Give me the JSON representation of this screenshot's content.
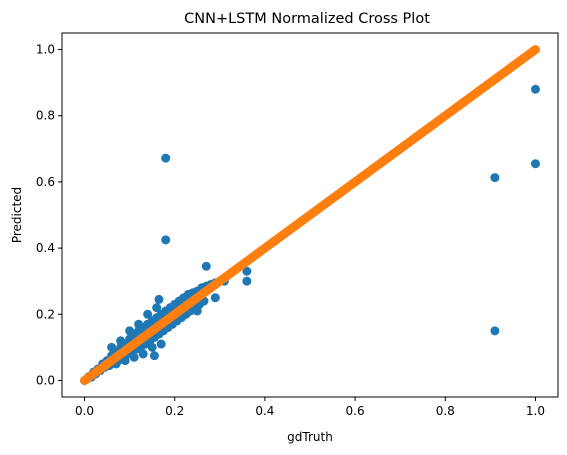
{
  "chart_data": {
    "type": "scatter",
    "title": "CNN+LSTM Normalized Cross Plot",
    "xlabel": "gdTruth",
    "ylabel": "Predicted",
    "xlim": [
      -0.05,
      1.05
    ],
    "ylim": [
      -0.05,
      1.05
    ],
    "xticks": [
      0.0,
      0.2,
      0.4,
      0.6,
      0.8,
      1.0
    ],
    "yticks": [
      0.0,
      0.2,
      0.4,
      0.6,
      0.8,
      1.0
    ],
    "xtick_labels": [
      "0.0",
      "0.2",
      "0.4",
      "0.6",
      "0.8",
      "1.0"
    ],
    "ytick_labels": [
      "0.0",
      "0.2",
      "0.4",
      "0.6",
      "0.8",
      "1.0"
    ],
    "grid": false,
    "legend": false,
    "series": [
      {
        "color": "#1f77b4",
        "role": "predicted_vs_truth",
        "points": [
          [
            0.0,
            0.0
          ],
          [
            0.005,
            0.004
          ],
          [
            0.01,
            0.012
          ],
          [
            0.015,
            0.01
          ],
          [
            0.02,
            0.025
          ],
          [
            0.025,
            0.02
          ],
          [
            0.03,
            0.035
          ],
          [
            0.035,
            0.03
          ],
          [
            0.04,
            0.05
          ],
          [
            0.045,
            0.04
          ],
          [
            0.05,
            0.06
          ],
          [
            0.055,
            0.045
          ],
          [
            0.06,
            0.075
          ],
          [
            0.065,
            0.055
          ],
          [
            0.07,
            0.085
          ],
          [
            0.075,
            0.06
          ],
          [
            0.08,
            0.1
          ],
          [
            0.085,
            0.07
          ],
          [
            0.09,
            0.11
          ],
          [
            0.095,
            0.08
          ],
          [
            0.1,
            0.125
          ],
          [
            0.105,
            0.09
          ],
          [
            0.11,
            0.14
          ],
          [
            0.115,
            0.095
          ],
          [
            0.12,
            0.15
          ],
          [
            0.125,
            0.1
          ],
          [
            0.13,
            0.16
          ],
          [
            0.135,
            0.11
          ],
          [
            0.14,
            0.17
          ],
          [
            0.145,
            0.12
          ],
          [
            0.15,
            0.18
          ],
          [
            0.155,
            0.13
          ],
          [
            0.16,
            0.19
          ],
          [
            0.165,
            0.14
          ],
          [
            0.17,
            0.2
          ],
          [
            0.175,
            0.15
          ],
          [
            0.18,
            0.21
          ],
          [
            0.185,
            0.16
          ],
          [
            0.19,
            0.22
          ],
          [
            0.195,
            0.17
          ],
          [
            0.2,
            0.23
          ],
          [
            0.205,
            0.18
          ],
          [
            0.21,
            0.24
          ],
          [
            0.215,
            0.19
          ],
          [
            0.22,
            0.25
          ],
          [
            0.225,
            0.2
          ],
          [
            0.23,
            0.26
          ],
          [
            0.235,
            0.21
          ],
          [
            0.24,
            0.265
          ],
          [
            0.245,
            0.22
          ],
          [
            0.25,
            0.27
          ],
          [
            0.255,
            0.23
          ],
          [
            0.26,
            0.28
          ],
          [
            0.265,
            0.24
          ],
          [
            0.27,
            0.285
          ],
          [
            0.28,
            0.29
          ],
          [
            0.29,
            0.295
          ],
          [
            0.3,
            0.3
          ],
          [
            0.31,
            0.3
          ],
          [
            0.06,
            0.1
          ],
          [
            0.08,
            0.12
          ],
          [
            0.1,
            0.15
          ],
          [
            0.12,
            0.17
          ],
          [
            0.14,
            0.2
          ],
          [
            0.16,
            0.22
          ],
          [
            0.07,
            0.05
          ],
          [
            0.09,
            0.06
          ],
          [
            0.11,
            0.07
          ],
          [
            0.13,
            0.08
          ],
          [
            0.15,
            0.1
          ],
          [
            0.17,
            0.11
          ],
          [
            0.12,
            0.13
          ],
          [
            0.13,
            0.12
          ],
          [
            0.14,
            0.14
          ],
          [
            0.11,
            0.12
          ],
          [
            0.1,
            0.11
          ],
          [
            0.15,
            0.15
          ],
          [
            0.16,
            0.16
          ],
          [
            0.17,
            0.17
          ],
          [
            0.13,
            0.14
          ],
          [
            0.12,
            0.11
          ],
          [
            0.14,
            0.13
          ],
          [
            0.16,
            0.18
          ],
          [
            0.165,
            0.245
          ],
          [
            0.155,
            0.075
          ],
          [
            0.2,
            0.2
          ],
          [
            0.22,
            0.22
          ],
          [
            0.24,
            0.25
          ],
          [
            0.19,
            0.19
          ],
          [
            0.27,
            0.345
          ],
          [
            0.36,
            0.33
          ],
          [
            0.36,
            0.3
          ],
          [
            0.29,
            0.25
          ],
          [
            0.25,
            0.21
          ],
          [
            0.18,
            0.672
          ],
          [
            0.18,
            0.425
          ],
          [
            1.0,
            0.88
          ],
          [
            1.0,
            0.655
          ],
          [
            0.91,
            0.613
          ],
          [
            0.91,
            0.15
          ]
        ]
      },
      {
        "color": "#ff7f0e",
        "role": "identity_line",
        "x_range": [
          0.0,
          1.0
        ],
        "point_spacing": 0.004
      }
    ]
  }
}
